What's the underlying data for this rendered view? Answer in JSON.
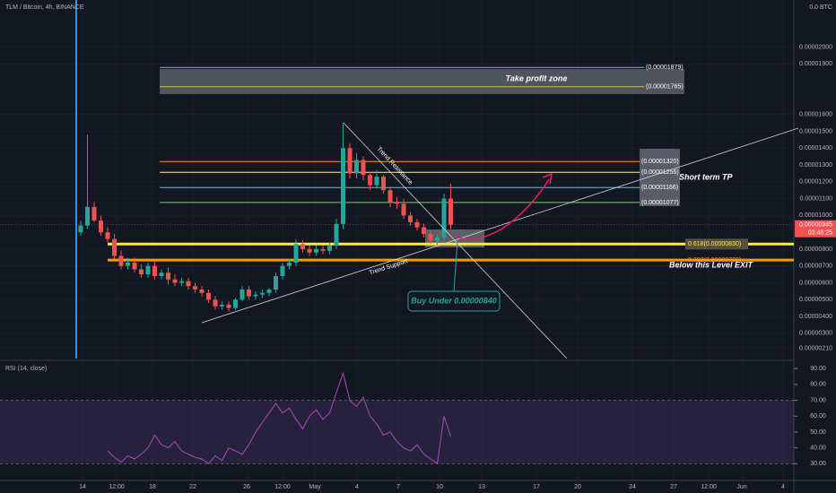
{
  "chart_data": {
    "type": "candlestick",
    "title": "TLM / Bitcoin, 4h, BINANCE",
    "axis_unit_label": "0.0 BTC",
    "ylim": [
      1.5e-06,
      2.28e-05
    ],
    "yticks": [
      {
        "value": 2e-05,
        "label": "0.00002000"
      },
      {
        "value": 1.9e-05,
        "label": "0.00001900"
      },
      {
        "value": 1.6e-05,
        "label": "0.00001600"
      },
      {
        "value": 1.5e-05,
        "label": "0.00001500"
      },
      {
        "value": 1.4e-05,
        "label": "0.00001400"
      },
      {
        "value": 1.3e-05,
        "label": "0.00001300"
      },
      {
        "value": 1.2e-05,
        "label": "0.00001200"
      },
      {
        "value": 1.1e-05,
        "label": "0.00001100"
      },
      {
        "value": 1e-05,
        "label": "0.00001000"
      },
      {
        "value": 8e-06,
        "label": "0.00000800"
      },
      {
        "value": 7e-06,
        "label": "0.00000700"
      },
      {
        "value": 6e-06,
        "label": "0.00000600"
      },
      {
        "value": 5e-06,
        "label": "0.00000500"
      },
      {
        "value": 4e-06,
        "label": "0.00000400"
      },
      {
        "value": 3e-06,
        "label": "0.00000300"
      },
      {
        "value": 2.1e-06,
        "label": "0.00000210"
      }
    ],
    "x_axis_labels": [
      "14",
      "12:00",
      "18",
      "22",
      "26",
      "12:00",
      "May",
      "4",
      "7",
      "10",
      "13",
      "17",
      "20",
      "24",
      "27",
      "12:00",
      "Jun",
      "4"
    ],
    "up_color": "#26a69a",
    "down_color": "#ef5350",
    "open": [
      9e-06,
      9.4e-06,
      1.05e-05,
      9.7e-06,
      9e-06,
      8.6e-06,
      7.6e-06,
      7e-06,
      7.2e-06,
      6.8e-06,
      6.5e-06,
      7e-06,
      6.4e-06,
      6.6e-06,
      6.2e-06,
      6e-06,
      6.1e-06,
      5.8e-06,
      5.6e-06,
      5.4e-06,
      5e-06,
      4.6e-06,
      4.7e-06,
      4.5e-06,
      5e-06,
      5.6e-06,
      5.2e-06,
      5.3e-06,
      5.4e-06,
      5.6e-06,
      6.4e-06,
      7e-06,
      7.2e-06,
      8.3e-06,
      8e-06,
      7.8e-06,
      8e-06,
      7.9e-06,
      8.2e-06,
      9.5e-06,
      1.4e-05,
      1.25e-05,
      1.33e-05,
      1.24e-05,
      1.18e-05,
      1.23e-05,
      1.15e-05,
      1.08e-05,
      1.07e-05,
      1e-05,
      9.6e-06,
      9.3e-06,
      8.9e-06,
      8.5e-06,
      8.7e-06,
      1.1e-05
    ],
    "high": [
      9.7e-06,
      1.48e-05,
      1.08e-05,
      1e-05,
      9.3e-06,
      8.9e-06,
      7.9e-06,
      7.5e-06,
      7.5e-06,
      7.1e-06,
      7.2e-06,
      7.3e-06,
      6.8e-06,
      6.9e-06,
      6.5e-06,
      6.3e-06,
      6.3e-06,
      6e-06,
      5.8e-06,
      5.6e-06,
      5.2e-06,
      4.9e-06,
      4.9e-06,
      5.1e-06,
      5.8e-06,
      5.8e-06,
      5.5e-06,
      5.6e-06,
      5.7e-06,
      6.6e-06,
      7.2e-06,
      7.4e-06,
      8.6e-06,
      8.5e-06,
      8.2e-06,
      8.2e-06,
      8.2e-06,
      8.4e-06,
      9.8e-06,
      1.55e-05,
      1.43e-05,
      1.37e-05,
      1.35e-05,
      1.26e-05,
      1.27e-05,
      1.24e-05,
      1.17e-05,
      1.11e-05,
      1.1e-05,
      1.02e-05,
      9.8e-06,
      9.5e-06,
      9.1e-06,
      8.9e-06,
      1.13e-05,
      1.19e-05
    ],
    "low": [
      8.8e-06,
      9.2e-06,
      9.6e-06,
      8.8e-06,
      8.4e-06,
      7.4e-06,
      6.8e-06,
      6.8e-06,
      6.6e-06,
      6.3e-06,
      6.3e-06,
      6.2e-06,
      6.2e-06,
      5.9e-06,
      5.8e-06,
      5.8e-06,
      5.6e-06,
      5.4e-06,
      5.2e-06,
      4.8e-06,
      4.4e-06,
      4.4e-06,
      4.3e-06,
      4.4e-06,
      4.9e-06,
      5e-06,
      5e-06,
      5.1e-06,
      5.2e-06,
      5.4e-06,
      6.2e-06,
      6.8e-06,
      7e-06,
      7.8e-06,
      7.6e-06,
      7.6e-06,
      7.7e-06,
      7.7e-06,
      8e-06,
      9.2e-06,
      1.22e-05,
      1.22e-05,
      1.21e-05,
      1.15e-05,
      1.16e-05,
      1.13e-05,
      1.05e-05,
      1.04e-05,
      9.8e-06,
      9.4e-06,
      9.1e-06,
      8.7e-06,
      8.3e-06,
      8.2e-06,
      8.5e-06,
      9.2e-06
    ],
    "close": [
      9.4e-06,
      1.05e-05,
      9.7e-06,
      9e-06,
      8.6e-06,
      7.6e-06,
      7e-06,
      7.2e-06,
      6.8e-06,
      6.5e-06,
      7e-06,
      6.4e-06,
      6.6e-06,
      6.2e-06,
      6e-06,
      6.1e-06,
      5.8e-06,
      5.6e-06,
      5.4e-06,
      5e-06,
      4.6e-06,
      4.7e-06,
      4.5e-06,
      5e-06,
      5.6e-06,
      5.2e-06,
      5.3e-06,
      5.4e-06,
      5.6e-06,
      6.4e-06,
      7e-06,
      7.2e-06,
      8.3e-06,
      8e-06,
      7.8e-06,
      8e-06,
      7.9e-06,
      8.2e-06,
      9.5e-06,
      1.4e-05,
      1.25e-05,
      1.33e-05,
      1.24e-05,
      1.18e-05,
      1.23e-05,
      1.15e-05,
      1.08e-05,
      1.07e-05,
      1e-05,
      9.6e-06,
      9.3e-06,
      8.9e-06,
      8.5e-06,
      8.7e-06,
      1.1e-05,
      9.45e-06
    ],
    "last_price": {
      "value": 9.45e-06,
      "label": "0.00000945"
    },
    "countdown": "03:48:25",
    "levels": [
      {
        "value": 1.879e-05,
        "label": "(0.00001879)",
        "color": "#4dd0c4"
      },
      {
        "value": 1.765e-05,
        "label": "(0.00001765)",
        "color": "#c0ca33"
      },
      {
        "value": 1.32e-05,
        "label": "(0.00001320)",
        "color": "#ff9800"
      },
      {
        "value": 1.256e-05,
        "label": "(0.00001256)",
        "color": "#fff59d"
      },
      {
        "value": 1.166e-05,
        "label": "(0.00001166)",
        "color": "#4dd0c4"
      },
      {
        "value": 1.077e-05,
        "label": "(0.00001077)",
        "color": "#81c784"
      },
      {
        "value": 8.3e-06,
        "label": "0.618(0.00000830)",
        "color": "#ffeb3b"
      },
      {
        "value": 7.35e-06,
        "label": "0.702(0.00000735)",
        "color": "#ff9800"
      }
    ],
    "annotations": {
      "take_profit": "Take profit zone",
      "short_tp": "Short term TP",
      "exit": "Below this Level EXIT",
      "resistance": "Trend Resistance",
      "support": "Trend Support",
      "buy": "Buy Under 0.00000840"
    },
    "rsi": {
      "title": "RSI (14, close)",
      "color": "#ab47bc",
      "ylim": [
        20,
        93.5
      ],
      "band": [
        30,
        70
      ],
      "yticks": [
        {
          "value": 90,
          "label": "90.00"
        },
        {
          "value": 80,
          "label": "80.00"
        },
        {
          "value": 70,
          "label": "70.00"
        },
        {
          "value": 60,
          "label": "60.00"
        },
        {
          "value": 50,
          "label": "50.00"
        },
        {
          "value": 40,
          "label": "40.00"
        },
        {
          "value": 30,
          "label": "30.00"
        }
      ],
      "values": [
        null,
        null,
        null,
        null,
        38,
        34,
        31,
        35,
        33,
        36,
        40,
        48,
        42,
        40,
        44,
        38,
        36,
        34,
        33,
        30,
        35,
        32,
        40,
        38,
        36,
        42,
        50,
        56,
        62,
        68,
        62,
        65,
        58,
        52,
        60,
        64,
        58,
        62,
        75,
        87,
        70,
        66,
        72,
        60,
        55,
        48,
        50,
        44,
        40,
        38,
        42,
        36,
        33,
        30,
        60,
        47
      ]
    }
  }
}
